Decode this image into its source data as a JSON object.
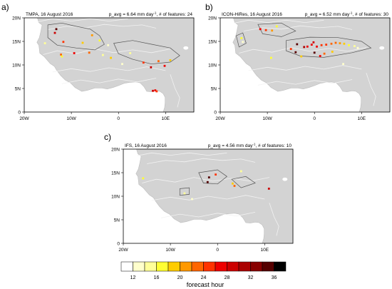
{
  "panels": [
    {
      "label": "a)",
      "title": "TMPA, 16 August 2016",
      "avg_prefix": "p_avg = 6.64 mm day",
      "avg_sup": "-1",
      "avg_suffix": ", # of features: 24",
      "features": [
        {
          "lon": -13.2,
          "lat": 17.6,
          "hour": 36
        },
        {
          "lon": -13.5,
          "lat": 16.8,
          "hour": 30
        },
        {
          "lon": -11.7,
          "lat": 14.9,
          "hour": 26
        },
        {
          "lon": -7.6,
          "lat": 14.7,
          "hour": 20
        },
        {
          "lon": -5.6,
          "lat": 16.3,
          "hour": 22
        },
        {
          "lon": -6.2,
          "lat": 12.6,
          "hour": 24
        },
        {
          "lon": -9.4,
          "lat": 12.5,
          "hour": 28
        },
        {
          "lon": -12.2,
          "lat": 12.2,
          "hour": 24
        },
        {
          "lon": -12.0,
          "lat": 11.8,
          "hour": 18
        },
        {
          "lon": -15.6,
          "lat": 14.6,
          "hour": 16
        },
        {
          "lon": -4.0,
          "lat": 15.2,
          "hour": 18
        },
        {
          "lon": -2.2,
          "lat": 14.2,
          "hour": 14
        },
        {
          "lon": -3.3,
          "lat": 12.1,
          "hour": 16
        },
        {
          "lon": -1.6,
          "lat": 11.5,
          "hour": 20
        },
        {
          "lon": 2.5,
          "lat": 12.5,
          "hour": 16
        },
        {
          "lon": 5.3,
          "lat": 10.5,
          "hour": 26
        },
        {
          "lon": 6.9,
          "lat": 9.5,
          "hour": 30
        },
        {
          "lon": 8.5,
          "lat": 10.8,
          "hour": 24
        },
        {
          "lon": 9.8,
          "lat": 9.8,
          "hour": 28
        },
        {
          "lon": 11.0,
          "lat": 11.0,
          "hour": 20
        },
        {
          "lon": 7.8,
          "lat": 4.6,
          "hour": 28
        },
        {
          "lon": 7.3,
          "lat": 4.5,
          "hour": 30
        },
        {
          "lon": 8.1,
          "lat": 4.4,
          "hour": 26
        },
        {
          "lon": 0.8,
          "lat": 10.2,
          "hour": 14
        }
      ]
    },
    {
      "label": "b)",
      "title": "ICON-HiRes, 16 August 2016",
      "avg_prefix": "p_avg = 6.52 mm day",
      "avg_sup": "-1",
      "avg_suffix": ", # of features: 30",
      "features": [
        {
          "lon": -11.5,
          "lat": 17.6,
          "hour": 28
        },
        {
          "lon": -10.3,
          "lat": 17.4,
          "hour": 26
        },
        {
          "lon": -9.0,
          "lat": 17.3,
          "hour": 22
        },
        {
          "lon": -8.0,
          "lat": 18.2,
          "hour": 18
        },
        {
          "lon": -15.5,
          "lat": 15.7,
          "hour": 18
        },
        {
          "lon": -15.2,
          "lat": 14.9,
          "hour": 14
        },
        {
          "lon": -3.7,
          "lat": 14.4,
          "hour": 36
        },
        {
          "lon": -4.0,
          "lat": 12.7,
          "hour": 36
        },
        {
          "lon": -2.2,
          "lat": 13.8,
          "hour": 32
        },
        {
          "lon": -1.5,
          "lat": 13.9,
          "hour": 28
        },
        {
          "lon": -0.6,
          "lat": 14.3,
          "hour": 28
        },
        {
          "lon": 0.5,
          "lat": 13.9,
          "hour": 28
        },
        {
          "lon": 1.5,
          "lat": 14.2,
          "hour": 26
        },
        {
          "lon": 2.5,
          "lat": 14.3,
          "hour": 26
        },
        {
          "lon": 3.6,
          "lat": 14.5,
          "hour": 24
        },
        {
          "lon": 4.5,
          "lat": 14.7,
          "hour": 24
        },
        {
          "lon": 5.4,
          "lat": 14.6,
          "hour": 22
        },
        {
          "lon": 6.3,
          "lat": 14.5,
          "hour": 20
        },
        {
          "lon": 7.3,
          "lat": 14.2,
          "hour": 18
        },
        {
          "lon": 8.5,
          "lat": 14.0,
          "hour": 16
        },
        {
          "lon": -2.8,
          "lat": 11.8,
          "hour": 20
        },
        {
          "lon": 0.0,
          "lat": 12.6,
          "hour": 36
        },
        {
          "lon": 1.2,
          "lat": 11.9,
          "hour": 28
        },
        {
          "lon": 2.1,
          "lat": 12.4,
          "hour": 24
        },
        {
          "lon": 3.8,
          "lat": 12.8,
          "hour": 20
        },
        {
          "lon": -9.2,
          "lat": 11.5,
          "hour": 18
        },
        {
          "lon": -0.2,
          "lat": 14.8,
          "hour": 30
        },
        {
          "lon": 6.1,
          "lat": 10.2,
          "hour": 14
        },
        {
          "lon": -5.0,
          "lat": 13.4,
          "hour": 26
        },
        {
          "lon": 9.2,
          "lat": 13.6,
          "hour": 14
        }
      ]
    },
    {
      "label": "c)",
      "title": "IFS, 16 August 2016",
      "avg_prefix": "p_avg = 4.56 mm day",
      "avg_sup": "-1",
      "avg_suffix": ", # of features: 10",
      "features": [
        {
          "lon": -1.8,
          "lat": 14.0,
          "hour": 36
        },
        {
          "lon": -2.1,
          "lat": 13.0,
          "hour": 36
        },
        {
          "lon": -0.4,
          "lat": 14.6,
          "hour": 26
        },
        {
          "lon": 3.6,
          "lat": 12.2,
          "hour": 24
        },
        {
          "lon": 3.2,
          "lat": 12.7,
          "hour": 20
        },
        {
          "lon": -15.8,
          "lat": 13.8,
          "hour": 18
        },
        {
          "lon": 5.0,
          "lat": 15.3,
          "hour": 16
        },
        {
          "lon": -7.0,
          "lat": 10.6,
          "hour": 16
        },
        {
          "lon": -5.4,
          "lat": 9.4,
          "hour": 14
        },
        {
          "lon": 10.9,
          "lat": 11.6,
          "hour": 30
        }
      ]
    }
  ],
  "axes": {
    "x_ticks": [
      {
        "lon": -20,
        "label": "20W"
      },
      {
        "lon": -10,
        "label": "10W"
      },
      {
        "lon": 0,
        "label": "0"
      },
      {
        "lon": 10,
        "label": "10E"
      }
    ],
    "y_ticks": [
      {
        "lat": 0,
        "label": "0"
      },
      {
        "lat": 5,
        "label": "5N"
      },
      {
        "lat": 10,
        "label": "10N"
      },
      {
        "lat": 15,
        "label": "15N"
      },
      {
        "lat": 20,
        "label": "20N"
      }
    ],
    "lon_range": [
      -20,
      16
    ],
    "lat_range": [
      0,
      20
    ]
  },
  "colorbar": {
    "title": "forecast hour",
    "tick_labels": [
      "12",
      "16",
      "20",
      "24",
      "28",
      "32",
      "36"
    ],
    "colors": [
      "#ffffff",
      "#ffffcc",
      "#ffff99",
      "#ffff33",
      "#ffcc00",
      "#ff9900",
      "#ff6600",
      "#ff3300",
      "#ee0000",
      "#cc0000",
      "#aa0000",
      "#880000",
      "#550000",
      "#000000"
    ],
    "hour_min": 12,
    "hour_max": 39
  }
}
